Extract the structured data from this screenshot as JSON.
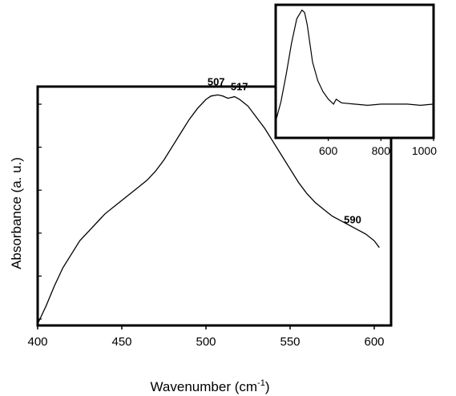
{
  "chart_data": [
    {
      "type": "line",
      "role": "main",
      "title": "",
      "xlabel": "Wavenumber (cm",
      "xlabel_sup": "-1",
      "xlabel_close": ")",
      "ylabel": "Absorbance (a. u.)",
      "xlim": [
        400,
        610
      ],
      "ylim": [
        0,
        1.05
      ],
      "xticks": [
        400,
        450,
        500,
        550,
        600
      ],
      "xtick_labels": [
        "400",
        "450",
        "500",
        "550",
        "600"
      ],
      "yticks_count": 6,
      "grid": false,
      "series": [
        {
          "x": [
            400,
            405,
            410,
            415,
            420,
            425,
            430,
            435,
            440,
            445,
            450,
            455,
            460,
            465,
            470,
            475,
            480,
            485,
            490,
            495,
            500,
            503,
            507,
            510,
            513,
            517,
            520,
            525,
            530,
            535,
            540,
            545,
            550,
            555,
            560,
            565,
            570,
            575,
            580,
            585,
            590,
            595,
            600,
            603
          ],
          "y": [
            0.0,
            0.08,
            0.17,
            0.25,
            0.31,
            0.37,
            0.41,
            0.45,
            0.49,
            0.52,
            0.55,
            0.58,
            0.61,
            0.64,
            0.68,
            0.73,
            0.79,
            0.85,
            0.91,
            0.96,
            1.0,
            1.015,
            1.02,
            1.015,
            1.005,
            1.012,
            1.0,
            0.97,
            0.92,
            0.87,
            0.81,
            0.75,
            0.69,
            0.63,
            0.58,
            0.54,
            0.51,
            0.48,
            0.46,
            0.44,
            0.42,
            0.4,
            0.37,
            0.34
          ]
        }
      ],
      "annotations": [
        {
          "text": "507",
          "x": 507,
          "y": 1.02
        },
        {
          "text": "517",
          "x": 517,
          "y": 1.012
        },
        {
          "text": "590",
          "x": 590,
          "y": 0.42
        }
      ]
    },
    {
      "type": "line",
      "role": "inset",
      "title": "",
      "xlabel": "",
      "ylabel": "",
      "xlim": [
        400,
        1000
      ],
      "ylim": [
        0,
        1.05
      ],
      "xticks": [
        600,
        800,
        1000
      ],
      "xtick_labels": [
        "600",
        "800",
        "1000"
      ],
      "grid": false,
      "series": [
        {
          "x": [
            400,
            420,
            440,
            460,
            480,
            500,
            510,
            520,
            530,
            540,
            560,
            580,
            600,
            620,
            630,
            650,
            700,
            750,
            800,
            850,
            900,
            950,
            1000
          ],
          "y": [
            0.12,
            0.28,
            0.5,
            0.75,
            0.95,
            1.02,
            1.0,
            0.9,
            0.75,
            0.6,
            0.45,
            0.36,
            0.3,
            0.26,
            0.3,
            0.27,
            0.26,
            0.25,
            0.26,
            0.26,
            0.26,
            0.25,
            0.26
          ]
        }
      ]
    }
  ]
}
